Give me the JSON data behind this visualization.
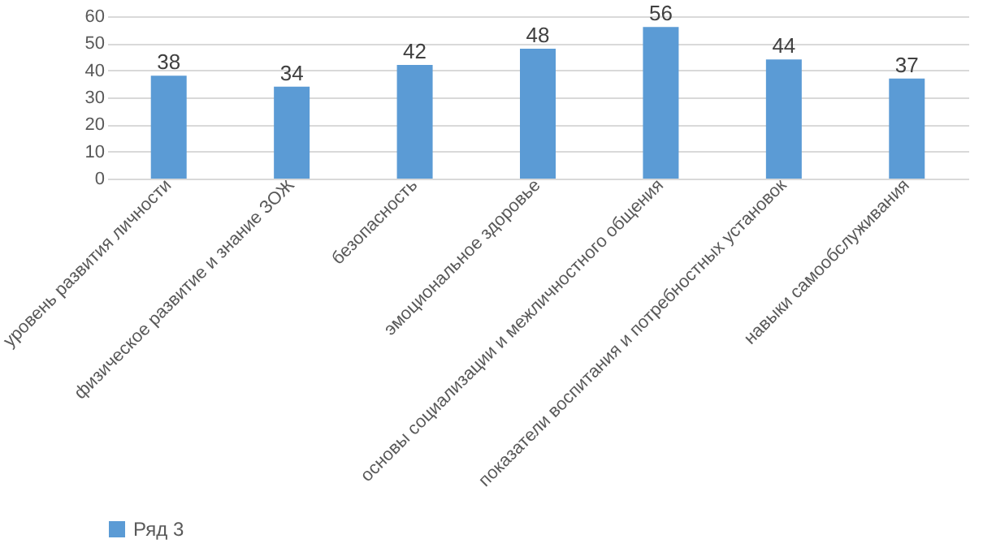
{
  "chart_data": {
    "type": "bar",
    "categories": [
      "уровень развития личности",
      "физическое развитие и знание ЗОЖ",
      "безопасность",
      "эмоциональное здоровье",
      "основы социализации и межличностного общения",
      "показатели воспитания и потребностных установок",
      "навыки самообслуживания"
    ],
    "series": [
      {
        "name": "Ряд 3",
        "color": "#5b9bd5",
        "values": [
          38,
          34,
          42,
          48,
          56,
          44,
          37
        ]
      }
    ],
    "ylim": [
      0,
      60
    ],
    "yticks": [
      0,
      10,
      20,
      30,
      40,
      50,
      60
    ],
    "grid": "y",
    "legend": "bottom",
    "data_labels": true
  }
}
